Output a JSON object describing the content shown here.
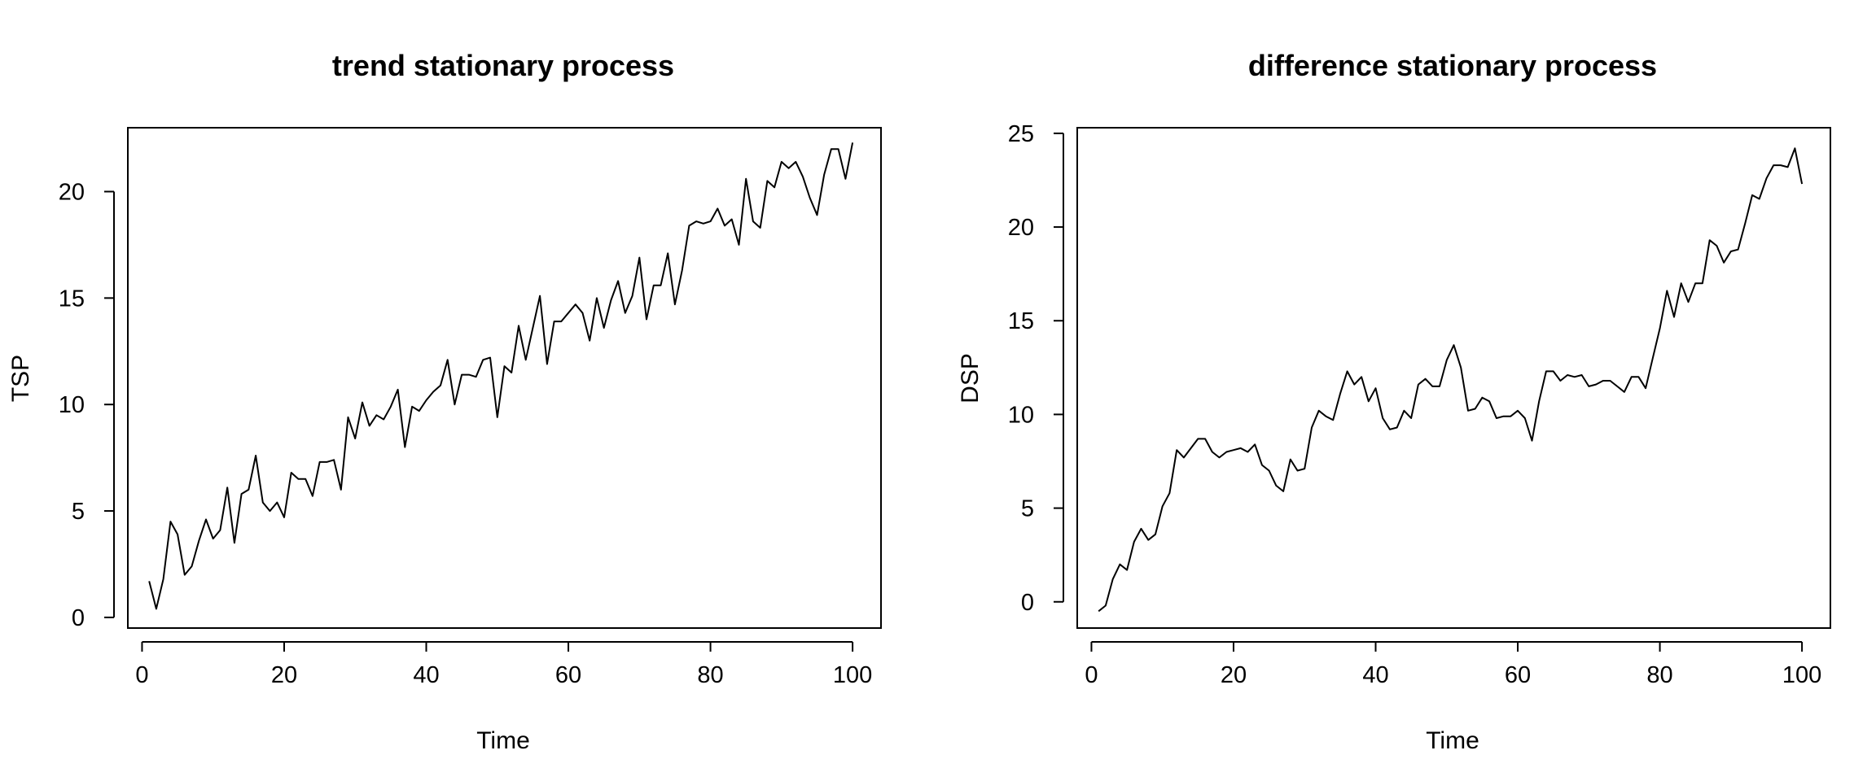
{
  "chart_data": [
    {
      "type": "line",
      "title": "trend stationary process",
      "xlabel": "Time",
      "ylabel": "TSP",
      "xlim": [
        -2,
        104
      ],
      "ylim": [
        -0.5,
        23
      ],
      "x_ticks": [
        0,
        20,
        40,
        60,
        80,
        100
      ],
      "y_ticks": [
        0,
        5,
        10,
        15,
        20
      ],
      "grid": false,
      "series": [
        {
          "x_start": 1,
          "x_step": 1,
          "values": [
            1.7,
            0.4,
            1.8,
            4.5,
            3.9,
            2.0,
            2.4,
            3.6,
            4.6,
            3.7,
            4.1,
            6.1,
            3.5,
            5.8,
            6.0,
            7.6,
            5.4,
            5.0,
            5.4,
            4.7,
            6.8,
            6.5,
            6.5,
            5.7,
            7.3,
            7.3,
            7.4,
            6.0,
            9.4,
            8.4,
            10.1,
            9.0,
            9.5,
            9.3,
            9.9,
            10.7,
            8.0,
            9.9,
            9.7,
            10.2,
            10.6,
            10.9,
            12.1,
            10.0,
            11.4,
            11.4,
            11.3,
            12.1,
            12.2,
            9.4,
            11.8,
            11.5,
            13.7,
            12.1,
            13.6,
            15.1,
            11.9,
            13.9,
            13.9,
            14.3,
            14.7,
            14.3,
            13.0,
            15.0,
            13.6,
            14.9,
            15.8,
            14.3,
            15.1,
            16.9,
            14.0,
            15.6,
            15.6,
            17.1,
            14.7,
            16.3,
            18.4,
            18.6,
            18.5,
            18.6,
            19.2,
            18.4,
            18.7,
            17.5,
            20.6,
            18.6,
            18.3,
            20.5,
            20.2,
            21.4,
            21.1,
            21.4,
            20.7,
            19.7,
            18.9,
            20.8,
            22.0,
            22.0,
            20.6,
            22.3
          ]
        }
      ]
    },
    {
      "type": "line",
      "title": "difference stationary process",
      "xlabel": "Time",
      "ylabel": "DSP",
      "xlim": [
        -2,
        104
      ],
      "ylim": [
        -1.4,
        25.3
      ],
      "x_ticks": [
        0,
        20,
        40,
        60,
        80,
        100
      ],
      "y_ticks": [
        0,
        5,
        10,
        15,
        20,
        25
      ],
      "grid": false,
      "series": [
        {
          "x_start": 1,
          "x_step": 1,
          "values": [
            -0.5,
            -0.2,
            1.2,
            2.0,
            1.7,
            3.2,
            3.9,
            3.3,
            3.6,
            5.1,
            5.8,
            8.1,
            7.7,
            8.2,
            8.7,
            8.7,
            8.0,
            7.7,
            8.0,
            8.1,
            8.2,
            8.0,
            8.4,
            7.3,
            7.0,
            6.2,
            5.9,
            7.6,
            7.0,
            7.1,
            9.3,
            10.2,
            9.9,
            9.7,
            11.1,
            12.3,
            11.6,
            12.0,
            10.7,
            11.4,
            9.8,
            9.2,
            9.3,
            10.2,
            9.8,
            11.6,
            11.9,
            11.5,
            11.5,
            12.9,
            13.7,
            12.5,
            10.2,
            10.3,
            10.9,
            10.7,
            9.8,
            9.9,
            9.9,
            10.2,
            9.8,
            8.6,
            10.7,
            12.3,
            12.3,
            11.8,
            12.1,
            12.0,
            12.1,
            11.5,
            11.6,
            11.8,
            11.8,
            11.5,
            11.2,
            12.0,
            12.0,
            11.4,
            13.0,
            14.6,
            16.6,
            15.2,
            17.0,
            16.0,
            17.0,
            17.0,
            19.3,
            19.0,
            18.1,
            18.7,
            18.8,
            20.2,
            21.7,
            21.5,
            22.6,
            23.3,
            23.3,
            23.2,
            24.2,
            22.3
          ]
        }
      ]
    }
  ]
}
